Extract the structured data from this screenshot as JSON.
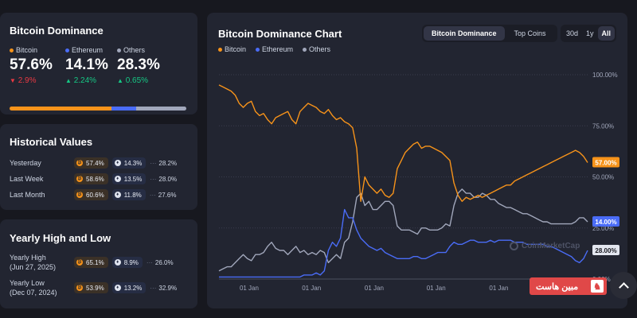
{
  "dominance": {
    "title": "Bitcoin Dominance",
    "items": [
      {
        "name": "Bitcoin",
        "value": "57.6%",
        "change": "2.9%",
        "dir": "down",
        "color": "#f7931a"
      },
      {
        "name": "Ethereum",
        "value": "14.1%",
        "change": "2.24%",
        "dir": "up",
        "color": "#4a6cf7"
      },
      {
        "name": "Others",
        "value": "28.3%",
        "change": "0.65%",
        "dir": "up",
        "color": "#a1a7bb"
      }
    ],
    "bar": [
      57.6,
      14.1,
      28.3
    ],
    "up_color": "#16c784",
    "down_color": "#ea3943"
  },
  "historical": {
    "title": "Historical Values",
    "rows": [
      {
        "label": "Yesterday",
        "btc": "57.4%",
        "eth": "14.3%",
        "others": "28.2%"
      },
      {
        "label": "Last Week",
        "btc": "58.6%",
        "eth": "13.5%",
        "others": "28.0%"
      },
      {
        "label": "Last Month",
        "btc": "60.6%",
        "eth": "11.8%",
        "others": "27.6%"
      }
    ]
  },
  "yearly": {
    "title": "Yearly High and Low",
    "rows": [
      {
        "label1": "Yearly High",
        "label2": "(Jun 27, 2025)",
        "btc": "65.1%",
        "eth": "8.9%",
        "others": "26.0%"
      },
      {
        "label1": "Yearly Low",
        "label2": "(Dec 07, 2024)",
        "btc": "53.9%",
        "eth": "13.2%",
        "others": "32.9%"
      }
    ]
  },
  "chart_panel": {
    "title": "Bitcoin Dominance Chart",
    "tabs": [
      "Bitcoin Dominance",
      "Top Coins"
    ],
    "active_tab": 0,
    "ranges": [
      "30d",
      "1y",
      "All"
    ],
    "active_range": 2,
    "watermark": "CoinMarketCap",
    "brand_badge": "مبین هاست",
    "brand_color": "#e04848"
  },
  "chart_data": {
    "type": "line",
    "ylim": [
      0,
      100
    ],
    "y_ticks": [
      "0.00%",
      "25.00%",
      "50.00%",
      "75.00%",
      "100.00%"
    ],
    "y_tick_values": [
      0,
      25,
      50,
      75,
      100
    ],
    "x_ticks": [
      "01 Jan",
      "01 Jan",
      "01 Jan",
      "01 Jan",
      "01 Jan",
      "01 Jan"
    ],
    "x_tick_positions": [
      0.082,
      0.251,
      0.421,
      0.589,
      0.759,
      0.925
    ],
    "legend": [
      "Bitcoin",
      "Ethereum",
      "Others"
    ],
    "end_labels": [
      "57.00%",
      "28.00%",
      "14.00%"
    ],
    "series": [
      {
        "name": "Bitcoin",
        "color": "#f7931a",
        "values": [
          95,
          94,
          93,
          92,
          90,
          86,
          84,
          86,
          87,
          82,
          80,
          81,
          78,
          76,
          79,
          80,
          81,
          82,
          78,
          76,
          82,
          84,
          86,
          85,
          84,
          82,
          81,
          83,
          80,
          78,
          79,
          77,
          76,
          74,
          64,
          38,
          50,
          46,
          44,
          42,
          44,
          41,
          40,
          42,
          54,
          58,
          62,
          64,
          66,
          67,
          64,
          65,
          65,
          64,
          63,
          62,
          60,
          58,
          47,
          41,
          38,
          40,
          39,
          40,
          41,
          40,
          41,
          42,
          43,
          44,
          45,
          46,
          46,
          48,
          49,
          50,
          51,
          52,
          53,
          54,
          55,
          56,
          57,
          58,
          59,
          60,
          61,
          62,
          63,
          62,
          60,
          57
        ]
      },
      {
        "name": "Ethereum",
        "color": "#4a6cf7",
        "values": [
          1,
          1,
          1,
          1,
          1,
          1,
          1,
          1,
          1,
          1,
          1,
          1,
          1,
          1,
          1,
          1,
          1,
          1,
          1,
          1,
          1,
          2,
          2,
          2,
          3,
          2,
          4,
          14,
          18,
          16,
          20,
          34,
          30,
          30,
          24,
          20,
          18,
          16,
          15,
          14,
          15,
          13,
          12,
          11,
          10,
          10,
          10,
          10,
          11,
          11,
          10,
          10,
          11,
          12,
          13,
          13,
          13,
          16,
          18,
          17,
          17,
          18,
          19,
          19,
          18,
          18,
          18,
          19,
          18,
          19,
          19,
          19,
          19,
          18,
          18,
          18,
          17,
          17,
          17,
          17,
          17,
          16,
          16,
          15,
          14,
          13,
          12,
          11,
          9,
          8,
          10,
          14
        ]
      },
      {
        "name": "Others",
        "color": "#a1a7bb",
        "values": [
          4,
          5,
          6,
          6,
          8,
          10,
          12,
          10,
          9,
          12,
          12,
          13,
          16,
          18,
          15,
          14,
          14,
          12,
          14,
          16,
          13,
          14,
          12,
          13,
          12,
          14,
          13,
          8,
          10,
          12,
          10,
          18,
          20,
          28,
          40,
          42,
          36,
          38,
          34,
          34,
          36,
          38,
          38,
          36,
          26,
          24,
          24,
          24,
          23,
          22,
          25,
          25,
          24,
          24,
          24,
          25,
          27,
          26,
          36,
          42,
          44,
          42,
          42,
          40,
          40,
          42,
          41,
          39,
          39,
          37,
          36,
          35,
          35,
          34,
          33,
          32,
          32,
          31,
          30,
          29,
          28,
          28,
          27,
          27,
          27,
          27,
          27,
          27,
          28,
          30,
          30,
          28
        ]
      }
    ]
  }
}
